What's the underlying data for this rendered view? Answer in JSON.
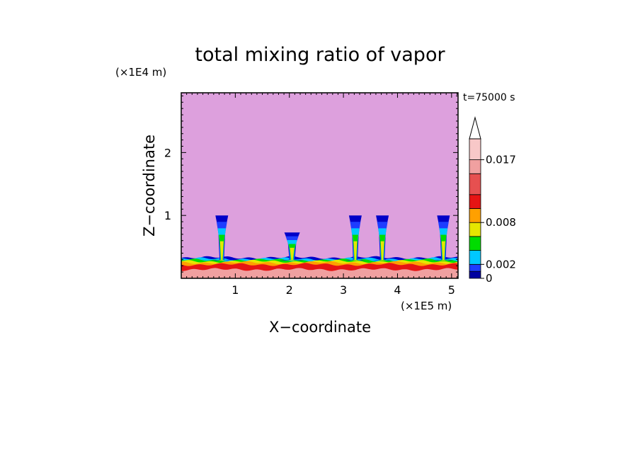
{
  "chart_data": {
    "type": "heatmap",
    "title": "total mixing ratio of vapor",
    "xlabel": "X−coordinate",
    "ylabel": "Z−coordinate",
    "x_unit_label": "(×1E5 m)",
    "y_unit_label": "(×1E4 m)",
    "time_label": "t=75000  s",
    "xlim": [
      0,
      5.12
    ],
    "ylim": [
      0,
      2.95
    ],
    "x_ticks": [
      {
        "v": 1,
        "label": "1"
      },
      {
        "v": 2,
        "label": "2"
      },
      {
        "v": 3,
        "label": "3"
      },
      {
        "v": 4,
        "label": "4"
      },
      {
        "v": 5,
        "label": "5"
      }
    ],
    "y_ticks": [
      {
        "v": 1,
        "label": "1"
      },
      {
        "v": 2,
        "label": "2"
      }
    ],
    "colorbar": {
      "levels": [
        0,
        0.001,
        0.002,
        0.004,
        0.006,
        0.008,
        0.01,
        0.012,
        0.015,
        0.017,
        0.02
      ],
      "colors": [
        "#0000a0",
        "#1e3cff",
        "#00c8ff",
        "#00dc00",
        "#e6e600",
        "#ffa000",
        "#e61414",
        "#e65050",
        "#f0a0a0",
        "#f8c8c8"
      ],
      "labeled_levels": [
        {
          "v": 0,
          "label": "0"
        },
        {
          "v": 0.002,
          "label": "0.002"
        },
        {
          "v": 0.008,
          "label": "0.008"
        },
        {
          "v": 0.017,
          "label": "0.017"
        }
      ],
      "extend": "max"
    },
    "background_color": "#dda0dd",
    "surface_layers": [
      {
        "z_top": 0.33,
        "color": "#0000c8"
      },
      {
        "z_top": 0.31,
        "color": "#00c8ff"
      },
      {
        "z_top": 0.29,
        "color": "#00dc00"
      },
      {
        "z_top": 0.27,
        "color": "#e6e600"
      },
      {
        "z_top": 0.25,
        "color": "#ffa000"
      },
      {
        "z_top": 0.22,
        "color": "#e61414"
      },
      {
        "z_top": 0.14,
        "color": "#f0a0a0"
      }
    ],
    "plumes": [
      {
        "x": 0.75,
        "z_top": 1.0
      },
      {
        "x": 2.05,
        "z_top": 0.73
      },
      {
        "x": 3.22,
        "z_top": 1.0
      },
      {
        "x": 3.72,
        "z_top": 1.0
      },
      {
        "x": 4.85,
        "z_top": 1.0
      }
    ]
  }
}
